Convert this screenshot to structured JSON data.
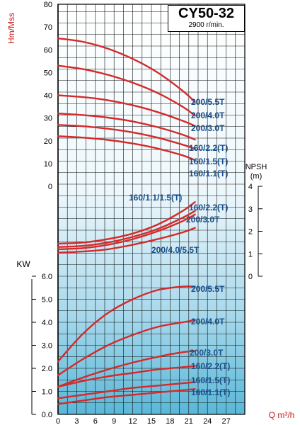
{
  "chart_data": {
    "type": "line",
    "title": "CY50-32",
    "subtitle": "2900 r/min.",
    "xlabel": "Q m³/h",
    "x_ticks": [
      0,
      3,
      6,
      9,
      12,
      15,
      18,
      21,
      24,
      27
    ],
    "xlim": [
      0,
      30
    ],
    "grid": true,
    "head": {
      "ylabel": "Hm/Mss",
      "ylim": [
        0,
        80
      ],
      "y_ticks": [
        0,
        10,
        20,
        30,
        40,
        50,
        60,
        70,
        80
      ],
      "series": [
        {
          "name": "200/5.5T",
          "x": [
            0,
            4,
            8,
            12,
            16,
            20,
            22
          ],
          "values": [
            65,
            63.5,
            60.5,
            56,
            50,
            42,
            37
          ]
        },
        {
          "name": "200/4.0T",
          "x": [
            0,
            4,
            8,
            12,
            16,
            20,
            22
          ],
          "values": [
            53,
            51.5,
            49,
            45.5,
            41,
            35,
            31
          ]
        },
        {
          "name": "200/3.0T",
          "x": [
            0,
            4,
            8,
            12,
            16,
            20,
            22
          ],
          "values": [
            40,
            39.2,
            37.8,
            35.6,
            32.6,
            28.8,
            26.5
          ]
        },
        {
          "name": "160/2.2(T)",
          "x": [
            0,
            4,
            8,
            12,
            16,
            20,
            22
          ],
          "values": [
            32,
            31.3,
            30.2,
            28.5,
            26,
            22.7,
            20.5
          ]
        },
        {
          "name": "160/1.5(T)",
          "x": [
            0,
            4,
            8,
            12,
            16,
            20,
            22
          ],
          "values": [
            27,
            26.4,
            25.3,
            23.7,
            21.4,
            18.3,
            16.5
          ]
        },
        {
          "name": "160/1.1(T)",
          "x": [
            0,
            4,
            8,
            12,
            16,
            20,
            22
          ],
          "values": [
            22,
            21.4,
            20.4,
            18.8,
            16.6,
            13.6,
            11.5
          ]
        }
      ]
    },
    "npsh": {
      "ylabel": "NPSH (m)",
      "ylim": [
        0,
        4
      ],
      "y_ticks": [
        0,
        1,
        2,
        3,
        4
      ],
      "series": [
        {
          "name": "160/1.1/1.5(T)",
          "x": [
            0,
            4,
            8,
            12,
            16,
            20,
            22
          ],
          "values": [
            1.45,
            1.5,
            1.65,
            1.9,
            2.3,
            2.9,
            3.3
          ]
        },
        {
          "name": "160/2.2(T)",
          "x": [
            0,
            4,
            8,
            12,
            16,
            20,
            22
          ],
          "values": [
            1.3,
            1.35,
            1.5,
            1.75,
            2.1,
            2.6,
            2.9
          ]
        },
        {
          "name": "200/3.0T",
          "x": [
            0,
            4,
            8,
            12,
            16,
            20,
            22
          ],
          "values": [
            1.2,
            1.25,
            1.4,
            1.65,
            2.0,
            2.45,
            2.75
          ]
        },
        {
          "name": "200/4.0/5.5T",
          "x": [
            0,
            4,
            8,
            12,
            16,
            20,
            22
          ],
          "values": [
            1.05,
            1.1,
            1.2,
            1.4,
            1.65,
            1.95,
            2.15
          ]
        }
      ]
    },
    "power": {
      "ylabel": "KW",
      "ylim": [
        0,
        7
      ],
      "y_ticks": [
        "0.0",
        "1.0",
        "2.0",
        "3.0",
        "4.0",
        "5.0",
        "6.0"
      ],
      "series": [
        {
          "name": "200/5.5T",
          "x": [
            0,
            4,
            8,
            12,
            16,
            20,
            22
          ],
          "values": [
            2.3,
            3.5,
            4.4,
            5.0,
            5.4,
            5.55,
            5.55
          ]
        },
        {
          "name": "200/4.0T",
          "x": [
            0,
            4,
            8,
            12,
            16,
            20,
            22
          ],
          "values": [
            1.7,
            2.4,
            3.0,
            3.45,
            3.8,
            4.0,
            4.1
          ]
        },
        {
          "name": "200/3.0T",
          "x": [
            0,
            4,
            8,
            12,
            16,
            20,
            22
          ],
          "values": [
            1.2,
            1.6,
            1.95,
            2.25,
            2.5,
            2.7,
            2.75
          ]
        },
        {
          "name": "160/2.2(T)",
          "x": [
            0,
            4,
            8,
            12,
            16,
            20,
            22
          ],
          "values": [
            1.2,
            1.45,
            1.65,
            1.8,
            1.95,
            2.05,
            2.1
          ]
        },
        {
          "name": "160/1.5(T)",
          "x": [
            0,
            4,
            8,
            12,
            16,
            20,
            22
          ],
          "values": [
            0.7,
            0.85,
            1.0,
            1.15,
            1.25,
            1.35,
            1.4
          ]
        },
        {
          "name": "160/1.1(T)",
          "x": [
            0,
            4,
            8,
            12,
            16,
            20,
            22
          ],
          "values": [
            0.45,
            0.6,
            0.75,
            0.85,
            0.95,
            1.05,
            1.1
          ]
        }
      ]
    },
    "colors": {
      "curve": "#d42a2a",
      "label": "#1a4f8a",
      "axis_label": "#cc1f1f",
      "grid": "#111111",
      "bg_top": "#ffffff",
      "bg_bottom": "#5ab7d8"
    }
  }
}
